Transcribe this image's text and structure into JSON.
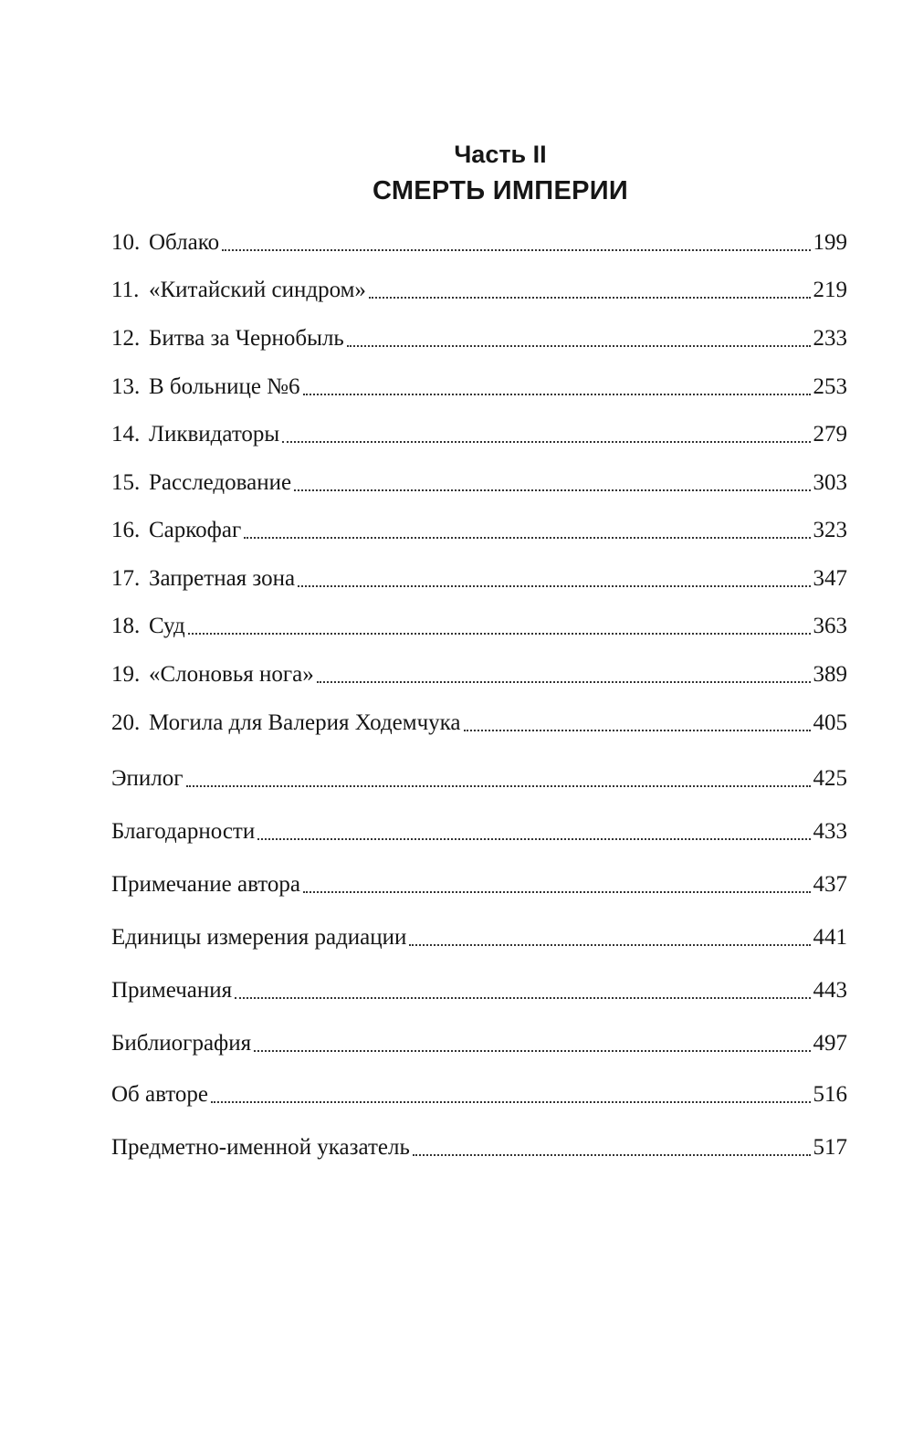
{
  "part": {
    "label": "Часть II",
    "title": "СМЕРТЬ ИМПЕРИИ"
  },
  "chapters": [
    {
      "number": "10.",
      "title": "Облако",
      "page": "199"
    },
    {
      "number": "11.",
      "title": "«Китайский синдром»",
      "page": "219"
    },
    {
      "number": "12.",
      "title": "Битва за Чернобыль",
      "page": "233"
    },
    {
      "number": "13.",
      "title": "В больнице №6",
      "page": "253"
    },
    {
      "number": "14.",
      "title": "Ликвидаторы",
      "page": "279"
    },
    {
      "number": "15.",
      "title": "Расследование",
      "page": "303"
    },
    {
      "number": "16.",
      "title": "Саркофаг",
      "page": "323"
    },
    {
      "number": "17.",
      "title": "Запретная зона",
      "page": "347"
    },
    {
      "number": "18.",
      "title": "Суд",
      "page": "363"
    },
    {
      "number": "19.",
      "title": "«Слоновья нога»",
      "page": "389"
    },
    {
      "number": "20.",
      "title": "Могила для Валерия Ходемчука",
      "page": "405"
    }
  ],
  "back_matter": [
    {
      "title": "Эпилог",
      "page": "425"
    },
    {
      "title": "Благодарности",
      "page": "433"
    },
    {
      "title": "Примечание автора",
      "page": "437"
    },
    {
      "title": "Единицы измерения радиации",
      "page": "441"
    },
    {
      "title": "Примечания",
      "page": "443"
    },
    {
      "title": "Библиография",
      "page": "497"
    },
    {
      "title": "Об авторе",
      "page": "516"
    },
    {
      "title": "Предметно-именной указатель",
      "page": "517"
    }
  ]
}
